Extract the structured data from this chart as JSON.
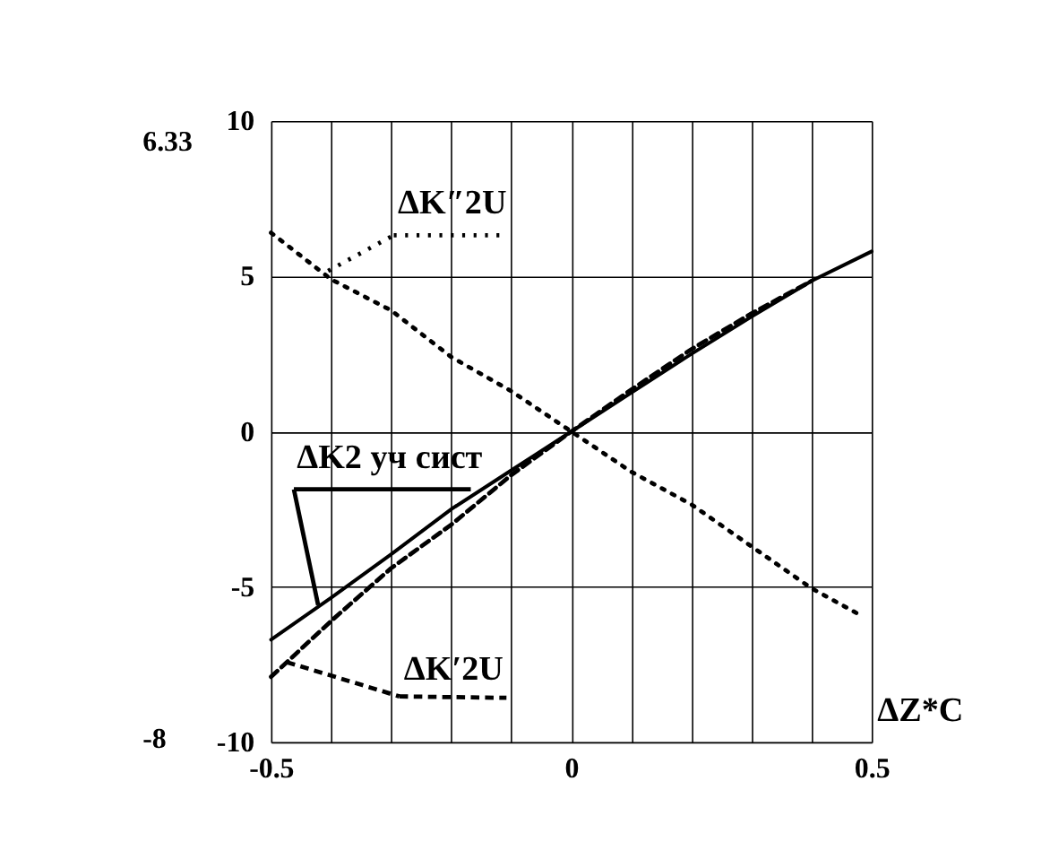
{
  "chart_data": {
    "type": "line",
    "xlabel": "ΔZ*C",
    "annotations": [
      "6.33",
      "-8"
    ],
    "xlim": [
      -0.5,
      0.5
    ],
    "xticks": [
      -0.5,
      {
        "value": -0.4,
        "label": null
      },
      {
        "value": -0.3,
        "label": null
      },
      {
        "value": -0.2,
        "label": null
      },
      {
        "value": -0.1,
        "label": null
      },
      0,
      {
        "value": 0.1,
        "label": null
      },
      {
        "value": 0.2,
        "label": null
      },
      {
        "value": 0.3,
        "label": null
      },
      {
        "value": 0.4,
        "label": null
      },
      0.5
    ],
    "ylim": [
      -10,
      10
    ],
    "yticks": [
      -10,
      -5,
      0,
      5,
      10
    ],
    "grid": true,
    "series": [
      {
        "name": "ΔK″2U",
        "color": "#000000",
        "line_style": "dotted",
        "x": [
          -0.5,
          -0.4,
          -0.3,
          -0.2,
          -0.1,
          0,
          0.1,
          0.2,
          0.3,
          0.4,
          0.48
        ],
        "values": [
          6.4,
          4.9,
          3.9,
          2.4,
          1.3,
          0,
          -1.3,
          -2.35,
          -3.7,
          -5.05,
          -5.9
        ]
      },
      {
        "name": "ΔK2 уч сист",
        "color": "#000000",
        "line_style": "solid",
        "x": [
          -0.5,
          -0.4,
          -0.3,
          -0.2,
          -0.1,
          0,
          0.1,
          0.2,
          0.3,
          0.4,
          0.5
        ],
        "values": [
          -6.7,
          -5.35,
          -3.95,
          -2.5,
          -1.25,
          0,
          1.25,
          2.5,
          3.7,
          4.85,
          5.8
        ]
      },
      {
        "name": "ΔK′2U",
        "color": "#000000",
        "line_style": "dashed",
        "x": [
          -0.5,
          -0.4,
          -0.3,
          -0.2,
          -0.1,
          0,
          0.1,
          0.2,
          0.3,
          0.4
        ],
        "values": [
          -7.9,
          -6.1,
          -4.4,
          -3.0,
          -1.4,
          0,
          1.35,
          2.65,
          3.8,
          4.85
        ]
      }
    ]
  }
}
